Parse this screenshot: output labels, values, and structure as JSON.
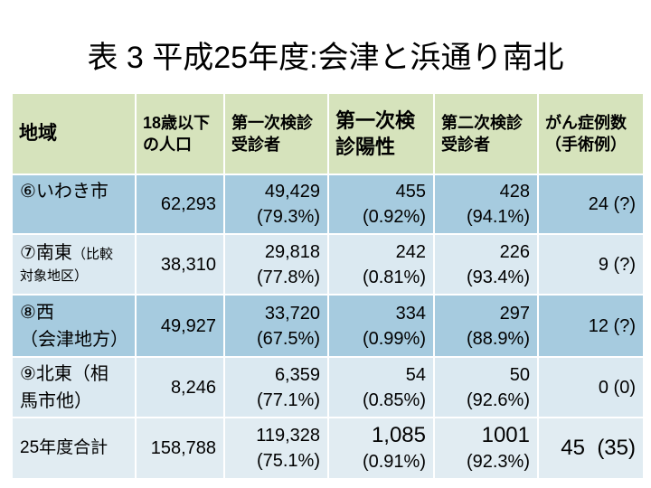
{
  "title": "表 3 平成25年度:会津と浜通り南北",
  "colors": {
    "header_bg": "#d6e3bc",
    "row_band_dark": "#a6cbdf",
    "row_band_light": "#dbe9f1",
    "total_row_bg": "#e1ecf2",
    "text": "#000000"
  },
  "table": {
    "headers": {
      "region": [
        "地域"
      ],
      "population_under_18": [
        "18歳以下",
        "の人口"
      ],
      "first_exam_examinees": [
        "第一次検診",
        "受診者"
      ],
      "first_exam_positive": [
        "第一次検",
        "診陽性"
      ],
      "second_exam_examinees": [
        "第二次検診",
        "受診者"
      ],
      "cancer_cases": [
        "がん症例数",
        "（手術例）"
      ]
    },
    "rows": [
      {
        "region": [
          "⑥いわき市"
        ],
        "population_under_18": "62,293",
        "first_exam_examinees": {
          "count": "49,429",
          "rate": "(79.3%)"
        },
        "first_exam_positive": {
          "count": "455",
          "rate": "(0.92%)"
        },
        "second_exam_examinees": {
          "count": "428",
          "rate": "(94.1%)"
        },
        "cancer_cases": "24 (?)"
      },
      {
        "region": {
          "name": "⑦南東",
          "note": [
            "（比較",
            "対象地区）"
          ]
        },
        "population_under_18": "38,310",
        "first_exam_examinees": {
          "count": "29,818",
          "rate": "(77.8%)"
        },
        "first_exam_positive": {
          "count": "242",
          "rate": "(0.81%)"
        },
        "second_exam_examinees": {
          "count": "226",
          "rate": "(93.4%)"
        },
        "cancer_cases": "9 (?)"
      },
      {
        "region": [
          "⑧西",
          "（会津地方）"
        ],
        "population_under_18": "49,927",
        "first_exam_examinees": {
          "count": "33,720",
          "rate": "(67.5%)"
        },
        "first_exam_positive": {
          "count": "334",
          "rate": "(0.99%)"
        },
        "second_exam_examinees": {
          "count": "297",
          "rate": "(88.9%)"
        },
        "cancer_cases": "12 (?)"
      },
      {
        "region": [
          "⑨北東（相",
          "馬市他）"
        ],
        "population_under_18": "8,246",
        "first_exam_examinees": {
          "count": "6,359",
          "rate": "(77.1%)"
        },
        "first_exam_positive": {
          "count": "54",
          "rate": "(0.85%)"
        },
        "second_exam_examinees": {
          "count": "50",
          "rate": "(92.6%)"
        },
        "cancer_cases": "0 (0)"
      },
      {
        "region": [
          "25年度合計"
        ],
        "population_under_18": "158,788",
        "first_exam_examinees": {
          "count": "119,328",
          "rate": "(75.1%)"
        },
        "first_exam_positive": {
          "count": "1,085",
          "rate": "(0.91%)"
        },
        "second_exam_examinees": {
          "count": "1001",
          "rate": "(92.3%)"
        },
        "cancer_cases": "45  (35)"
      }
    ]
  }
}
